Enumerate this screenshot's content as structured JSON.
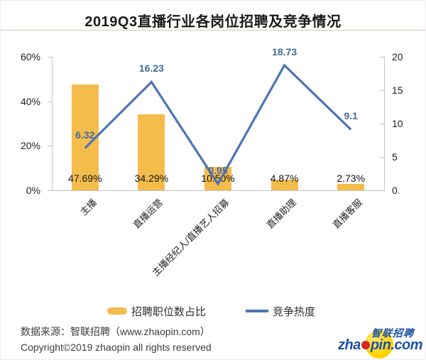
{
  "title": "2019Q3直播行业各岗位招聘及竞争情况",
  "chart_data": {
    "type": "bar",
    "subtype": "combo-bar-line",
    "title": "2019Q3直播行业各岗位招聘及竞争情况",
    "categories": [
      "主播",
      "直播运营",
      "主播经纪人/直播艺人招募",
      "直播助理",
      "直播客服"
    ],
    "series": [
      {
        "name": "招聘职位数占比",
        "type": "bar",
        "axis": "left",
        "unit": "%",
        "values": [
          47.69,
          34.29,
          10.5,
          4.87,
          2.73
        ],
        "labels": [
          "47.69%",
          "34.29%",
          "10.50%",
          "4.87%",
          "2.73%"
        ],
        "color": "#F3BC4B"
      },
      {
        "name": "竞争热度",
        "type": "line",
        "axis": "right",
        "values": [
          6.32,
          16.23,
          0.95,
          18.73,
          9.1
        ],
        "labels": [
          "6.32",
          "16.23",
          "0.95",
          "18.73",
          "9.1"
        ],
        "color": "#4C74B4"
      }
    ],
    "left_axis": {
      "min": 0,
      "max": 60,
      "ticks": [
        "0%",
        "20%",
        "40%",
        "60%"
      ]
    },
    "right_axis": {
      "min": 0,
      "max": 20,
      "ticks": [
        "0",
        "5",
        "10",
        "15",
        "20"
      ]
    },
    "grid": false,
    "legend_position": "bottom"
  },
  "legend": {
    "bar_label": "招聘职位数占比",
    "line_label": "竞争热度"
  },
  "footer": {
    "source": "数据来源：智联招聘（www.zhaopin.com）",
    "copyright": "Copyright©2019 zhaopin all rights reserved"
  },
  "logo": {
    "cn": "智联招聘",
    "en_prefix": "zha",
    "en_suffix": "pin.com"
  },
  "colors": {
    "bar": "#F3BC4B",
    "line": "#4C74B4",
    "value_label": "#44699E",
    "axis_line": "#C3C3C3",
    "title_underline": "#DFC0BD"
  }
}
